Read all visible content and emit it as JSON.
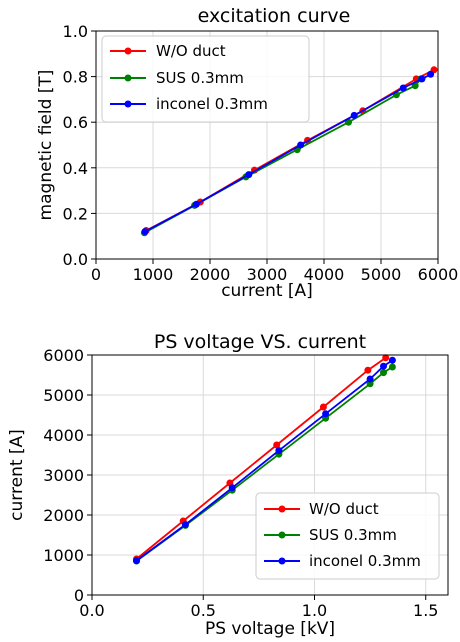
{
  "chart_data": [
    {
      "type": "line",
      "title": "excitation curve",
      "xlabel": "current [A]",
      "ylabel": "magnetic field [T]",
      "xlim": [
        0,
        6000
      ],
      "ylim": [
        0,
        1.0
      ],
      "xticks": [
        0,
        1000,
        2000,
        3000,
        4000,
        5000,
        6000
      ],
      "yticks": [
        0.0,
        0.2,
        0.4,
        0.6,
        0.8,
        1.0
      ],
      "xtick_labels": [
        "0",
        "1000",
        "2000",
        "3000",
        "4000",
        "5000",
        "6000"
      ],
      "ytick_labels": [
        "0.0",
        "0.2",
        "0.4",
        "0.6",
        "0.8",
        "1.0"
      ],
      "grid": true,
      "legend": "upper-left",
      "series": [
        {
          "name": "W/O duct",
          "color": "#ff0000",
          "x": [
            880,
            1830,
            2780,
            3710,
            4680,
            5620,
            5930
          ],
          "y": [
            0.125,
            0.25,
            0.39,
            0.52,
            0.65,
            0.79,
            0.83
          ]
        },
        {
          "name": "SUS 0.3mm",
          "color": "#008000",
          "x": [
            850,
            1730,
            2630,
            3530,
            4430,
            5270,
            5600,
            5700
          ],
          "y": [
            0.115,
            0.235,
            0.36,
            0.48,
            0.6,
            0.72,
            0.76,
            0.79
          ]
        },
        {
          "name": "inconel 0.3mm",
          "color": "#0000ff",
          "x": [
            860,
            1760,
            2680,
            3590,
            4530,
            5390,
            5720,
            5870
          ],
          "y": [
            0.12,
            0.24,
            0.37,
            0.5,
            0.63,
            0.75,
            0.79,
            0.81
          ]
        }
      ]
    },
    {
      "type": "line",
      "title": "PS voltage VS. current",
      "xlabel": "PS voltage [kV]",
      "ylabel": "current [A]",
      "xlim": [
        0,
        1.6
      ],
      "ylim": [
        0,
        6000
      ],
      "xticks": [
        0.0,
        0.5,
        1.0,
        1.5
      ],
      "yticks": [
        0,
        1000,
        2000,
        3000,
        4000,
        5000,
        6000
      ],
      "xtick_labels": [
        "0.0",
        "0.5",
        "1.0",
        "1.5"
      ],
      "ytick_labels": [
        "0",
        "1000",
        "2000",
        "3000",
        "4000",
        "5000",
        "6000"
      ],
      "grid": true,
      "legend": "lower-right",
      "series": [
        {
          "name": "W/O duct",
          "color": "#ff0000",
          "x": [
            0.2,
            0.41,
            0.62,
            0.83,
            1.04,
            1.24,
            1.32
          ],
          "y": [
            900,
            1850,
            2800,
            3750,
            4700,
            5620,
            5930
          ]
        },
        {
          "name": "SUS 0.3mm",
          "color": "#008000",
          "x": [
            0.2,
            0.42,
            0.63,
            0.84,
            1.05,
            1.25,
            1.31,
            1.35
          ],
          "y": [
            850,
            1740,
            2620,
            3520,
            4420,
            5280,
            5560,
            5700
          ]
        },
        {
          "name": "inconel 0.3mm",
          "color": "#0000ff",
          "x": [
            0.2,
            0.42,
            0.63,
            0.84,
            1.05,
            1.25,
            1.31,
            1.35
          ],
          "y": [
            860,
            1760,
            2680,
            3610,
            4530,
            5400,
            5720,
            5870
          ]
        }
      ]
    }
  ]
}
